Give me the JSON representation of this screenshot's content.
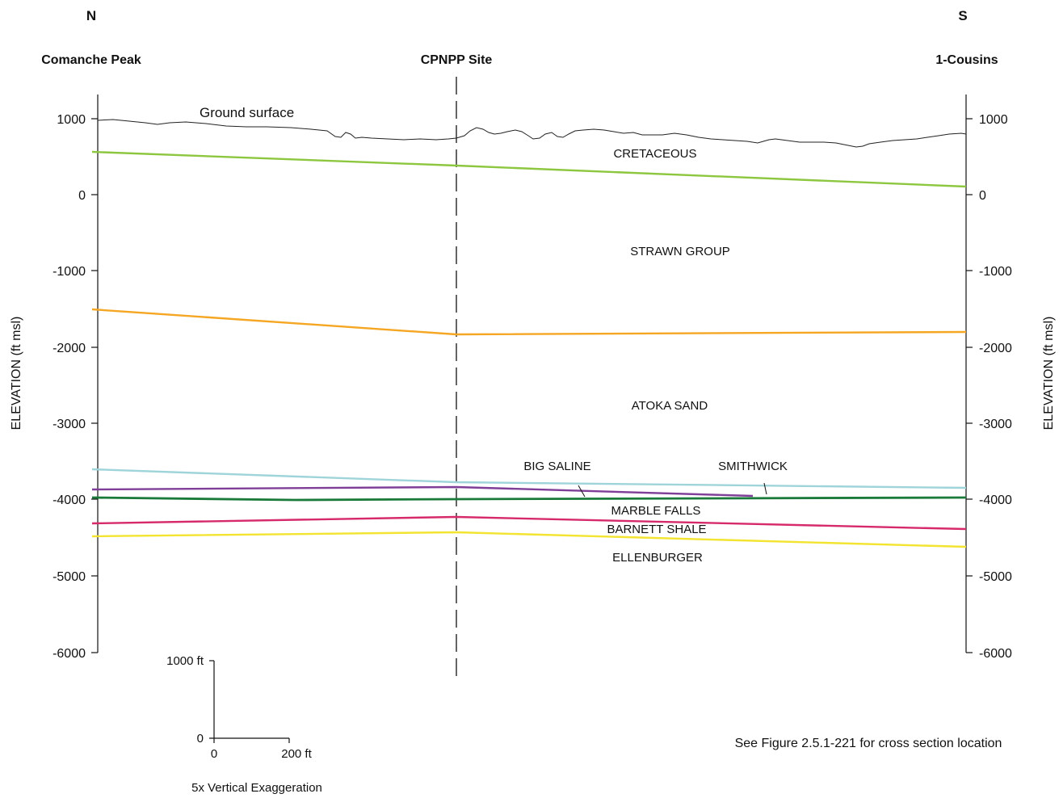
{
  "header": {
    "north": "N",
    "south": "S",
    "left_well": "Comanche Peak",
    "center_site": "CPNPP Site",
    "right_well": "1-Cousins"
  },
  "axis": {
    "label_left": "ELEVATION (ft msl)",
    "label_right": "ELEVATION (ft msl)",
    "ticks": [
      "1000",
      "0",
      "-1000",
      "-2000",
      "-3000",
      "-4000",
      "-5000",
      "-6000"
    ]
  },
  "ground_label": "Ground surface",
  "units": {
    "cretaceous": "CRETACEOUS",
    "strawn": "STRAWN GROUP",
    "atoka": "ATOKA SAND",
    "big_saline": "BIG SALINE",
    "smithwick": "SMITHWICK",
    "marble_falls": "MARBLE FALLS",
    "barnett": "BARNETT SHALE",
    "ellenburger": "ELLENBURGER"
  },
  "colors": {
    "cretaceous_base": "#8dc63f",
    "strawn_base": "#f5a623",
    "atoka_base": "#9fd4da",
    "big_saline_base": "#7f3f98",
    "smithwick_base": "#1a7a3a",
    "marble_falls_base": "#d62a6b",
    "barnett_base": "#f2e430"
  },
  "scale": {
    "vertical_top": "1000 ft",
    "zero": "0",
    "h_zero": "0",
    "horizontal_end": "200 ft",
    "note": "5x Vertical Exaggeration"
  },
  "reference_note": "See Figure 2.5.1-221 for cross section location"
}
